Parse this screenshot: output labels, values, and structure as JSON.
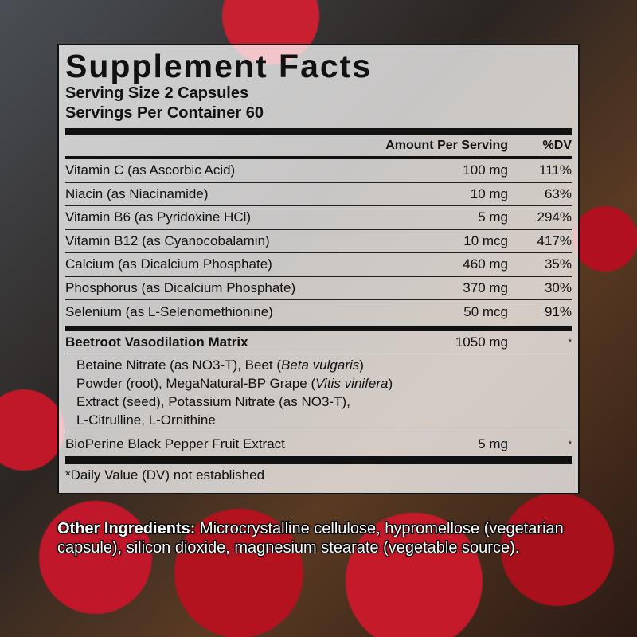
{
  "title": "Supplement Facts",
  "serving_size": "Serving Size 2 Capsules",
  "servings_per_container": "Servings Per Container 60",
  "header": {
    "amount": "Amount Per Serving",
    "dv": "%DV"
  },
  "nutrients": [
    {
      "name": "Vitamin C (as Ascorbic Acid)",
      "amount": "100 mg",
      "dv": "111%"
    },
    {
      "name": "Niacin (as Niacinamide)",
      "amount": "10 mg",
      "dv": "63%"
    },
    {
      "name": "Vitamin B6 (as Pyridoxine HCl)",
      "amount": "5 mg",
      "dv": "294%"
    },
    {
      "name": "Vitamin B12 (as Cyanocobalamin)",
      "amount": "10 mcg",
      "dv": "417%"
    },
    {
      "name": "Calcium (as Dicalcium Phosphate)",
      "amount": "460 mg",
      "dv": "35%"
    },
    {
      "name": "Phosphorus (as Dicalcium Phosphate)",
      "amount": "370 mg",
      "dv": "30%"
    },
    {
      "name": "Selenium (as L-Selenomethionine)",
      "amount": "50 mcg",
      "dv": "91%"
    }
  ],
  "matrix": {
    "name": "Beetroot Vasodilation Matrix",
    "amount": "1050 mg",
    "dv": "*",
    "t1": "Betaine Nitrate (as NO3-T), Beet (",
    "i1": "Beta vulgaris",
    "t2": ")",
    "t3": "Powder (root), MegaNatural-BP Grape (",
    "i2": "Vitis vinifera",
    "t4": ")",
    "t5": "Extract (seed), Potassium Nitrate (as NO3-T),",
    "t6": "L-Citrulline, L-Ornithine"
  },
  "bioperine": {
    "name": "BioPerine Black Pepper Fruit Extract",
    "amount": "5 mg",
    "dv": "*"
  },
  "footnote": "*Daily Value (DV) not established",
  "other": {
    "label": "Other Ingredients:",
    "text": " Microcrystalline cellulose, hypromellose (vegetarian capsule), silicon dioxide, magnesium stearate (vegetable source)."
  }
}
